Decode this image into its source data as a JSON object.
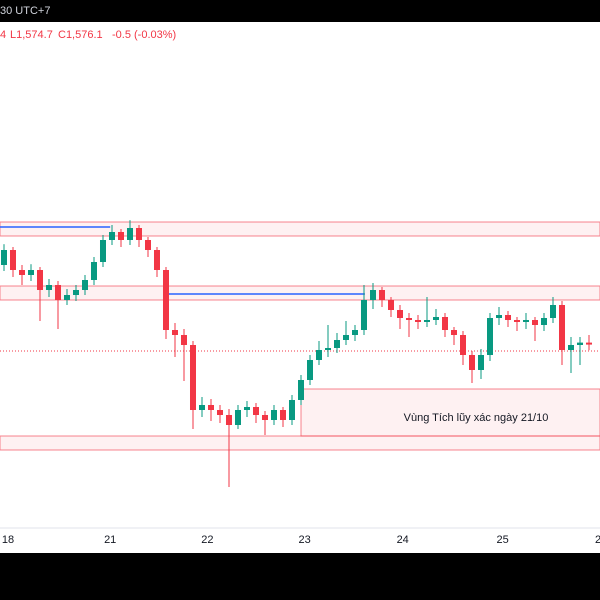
{
  "header": {
    "session": "30 UTC+7",
    "ohlc_fragment": "4",
    "low": "L1,574.7",
    "close": "C1,576.1",
    "change": "-0.5 (-0.03%)"
  },
  "chart_data": {
    "type": "candlestick",
    "annotation": "Vùng Tích lũy xác ngày 21/10",
    "x": [
      0,
      1,
      2,
      3,
      4,
      5,
      6,
      7,
      8,
      9,
      10,
      11,
      12,
      13,
      14,
      15,
      16,
      17,
      18,
      19,
      20,
      21,
      22,
      23,
      24,
      25,
      26,
      27,
      28,
      29,
      30,
      31,
      32,
      33,
      34,
      35,
      36,
      37,
      38,
      39,
      40,
      41,
      42,
      43,
      44,
      45,
      46,
      47,
      48,
      49,
      50,
      51,
      52,
      53,
      54,
      55,
      56,
      57,
      58,
      59,
      60,
      61,
      62,
      63,
      64,
      65
    ],
    "open": [
      1596,
      1599.75,
      1594.75,
      1593.5,
      1594.75,
      1589.75,
      1591,
      1587.25,
      1588.5,
      1589.75,
      1592.25,
      1596.75,
      1602.25,
      1604.25,
      1602.25,
      1605.25,
      1602.25,
      1599.75,
      1594.75,
      1579.75,
      1578.5,
      1576,
      1559.75,
      1561,
      1559.75,
      1558.5,
      1556,
      1559.75,
      1560.5,
      1558.5,
      1557.25,
      1559.75,
      1557.25,
      1562.25,
      1567.25,
      1572.25,
      1574.75,
      1575.25,
      1577.25,
      1578.5,
      1579.75,
      1587.25,
      1589.75,
      1587.25,
      1584.75,
      1582.75,
      1582.25,
      1581.75,
      1582.25,
      1583,
      1579.75,
      1578.5,
      1573.5,
      1569.75,
      1573.5,
      1582.75,
      1583.5,
      1582.25,
      1581.75,
      1582.25,
      1581,
      1582.75,
      1586,
      1574.75,
      1576,
      1576.6
    ],
    "high": [
      1601.2,
      1600.5,
      1596,
      1596.2,
      1595.5,
      1592.5,
      1592,
      1590,
      1591,
      1593.5,
      1598,
      1603.5,
      1606,
      1605,
      1607.2,
      1606,
      1603,
      1600.5,
      1595.5,
      1581.5,
      1580,
      1577,
      1563,
      1562.5,
      1561,
      1560,
      1561,
      1562,
      1561.5,
      1559.5,
      1561,
      1560.5,
      1563.5,
      1568.5,
      1573.5,
      1577,
      1581,
      1579,
      1582,
      1581,
      1591,
      1591.5,
      1590.5,
      1588,
      1586,
      1584,
      1583.5,
      1588,
      1585,
      1584,
      1580.5,
      1579.5,
      1574.5,
      1575,
      1584,
      1585.5,
      1584.5,
      1583,
      1584,
      1583,
      1584,
      1588,
      1587,
      1578,
      1578,
      1578.5
    ],
    "low": [
      1594.5,
      1593,
      1591,
      1592,
      1582,
      1588,
      1580,
      1586,
      1587,
      1588.5,
      1591,
      1595.5,
      1601,
      1600.5,
      1601,
      1600.5,
      1598,
      1593,
      1577.5,
      1573,
      1567,
      1555,
      1558,
      1557,
      1556.5,
      1540.5,
      1555,
      1558,
      1556.5,
      1553.5,
      1556,
      1555.5,
      1556,
      1561,
      1566,
      1571,
      1573,
      1574,
      1576,
      1577,
      1578.5,
      1585,
      1585.5,
      1583,
      1580,
      1578,
      1580,
      1580.5,
      1581,
      1578,
      1576,
      1571,
      1566.5,
      1567.5,
      1572,
      1581,
      1580.5,
      1579.5,
      1580,
      1577,
      1579.5,
      1581.5,
      1571,
      1569,
      1571,
      1574.7
    ],
    "close": [
      1599.75,
      1594.75,
      1593.5,
      1594.75,
      1589.75,
      1591,
      1587.25,
      1588.5,
      1589.75,
      1592.25,
      1596.75,
      1602.25,
      1604.25,
      1602.25,
      1605.25,
      1602.25,
      1599.75,
      1594.75,
      1579.75,
      1578.5,
      1576,
      1559.75,
      1561,
      1559.75,
      1558.5,
      1556,
      1559.75,
      1560.5,
      1558.5,
      1557.25,
      1559.75,
      1557.25,
      1562.25,
      1567.25,
      1572.25,
      1574.75,
      1575.25,
      1577.25,
      1578.5,
      1579.75,
      1587.25,
      1589.75,
      1587.25,
      1584.75,
      1582.75,
      1582.25,
      1581.75,
      1582.25,
      1583,
      1579.75,
      1578.5,
      1573.5,
      1569.75,
      1573.5,
      1582.75,
      1583.5,
      1582.25,
      1581.75,
      1582.25,
      1581,
      1582.75,
      1586,
      1574.75,
      1576,
      1576.6,
      1576.1
    ],
    "up_color": "#089981",
    "down_color": "#f23645",
    "xlim": [
      -0.444,
      66.222
    ],
    "ylim": [
      1529.75,
      1656.75
    ],
    "xticks": [
      {
        "value": 0.44,
        "label": "18"
      },
      {
        "value": 11.8,
        "label": "21"
      },
      {
        "value": 22.6,
        "label": "22"
      },
      {
        "value": 33.4,
        "label": "23"
      },
      {
        "value": 44.3,
        "label": "24"
      },
      {
        "value": 55.4,
        "label": "25"
      },
      {
        "value": 66.0,
        "label": "2"
      }
    ],
    "zones": [
      {
        "from": -0.444,
        "to": 66.222,
        "low": 1603.25,
        "high": 1606.75
      },
      {
        "from": -0.444,
        "to": 66.222,
        "low": 1587.25,
        "high": 1590.75
      },
      {
        "from": 33,
        "to": 66.222,
        "low": 1553.25,
        "high": 1565
      },
      {
        "from": -0.444,
        "to": 66.222,
        "low": 1549.75,
        "high": 1553.25
      }
    ],
    "zone_color": "#f23645",
    "levels": [
      {
        "from": -0.444,
        "to": 11.8,
        "price": 1605.5
      },
      {
        "from": 18.1,
        "to": 40.1,
        "price": 1588.75
      }
    ],
    "level_color": "#2962ff",
    "price_line": 1574.5
  }
}
